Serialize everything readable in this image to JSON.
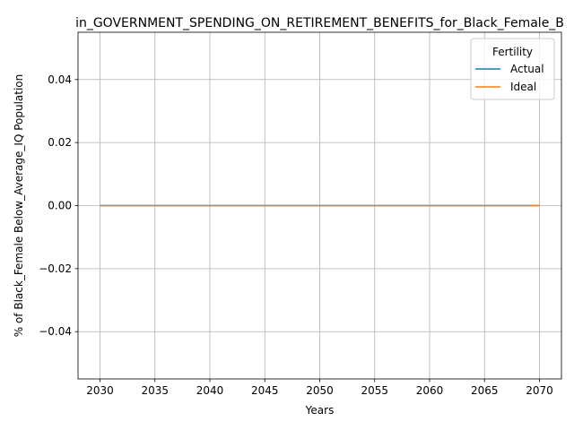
{
  "chart_data": {
    "type": "line",
    "title": "in_GOVERNMENT_SPENDING_ON_RETIREMENT_BENEFITS_for_Black_Female_B",
    "xlabel": "Years",
    "ylabel": "% of Black_Female Below_Average_IQ Population",
    "x": [
      2030,
      2035,
      2040,
      2045,
      2050,
      2055,
      2060,
      2065,
      2070
    ],
    "xticks": [
      "2030",
      "2035",
      "2040",
      "2045",
      "2050",
      "2055",
      "2060",
      "2065",
      "2070"
    ],
    "yticks": [
      "−0.04",
      "−0.02",
      "0.00",
      "0.02",
      "0.04"
    ],
    "ytick_values": [
      -0.04,
      -0.02,
      0.0,
      0.02,
      0.04
    ],
    "xlim": [
      2028,
      2072
    ],
    "ylim": [
      -0.055,
      0.055
    ],
    "grid": true,
    "legend": {
      "title": "Fertility",
      "placement": "top-right"
    },
    "series": [
      {
        "name": "Actual",
        "color": "#1f77b4",
        "values": [
          0,
          0,
          0,
          0,
          0,
          0,
          0,
          0,
          0
        ]
      },
      {
        "name": "Ideal",
        "color": "#ff7f0e",
        "values": [
          0,
          0,
          0,
          0,
          0,
          0,
          0,
          0,
          0
        ]
      }
    ]
  }
}
